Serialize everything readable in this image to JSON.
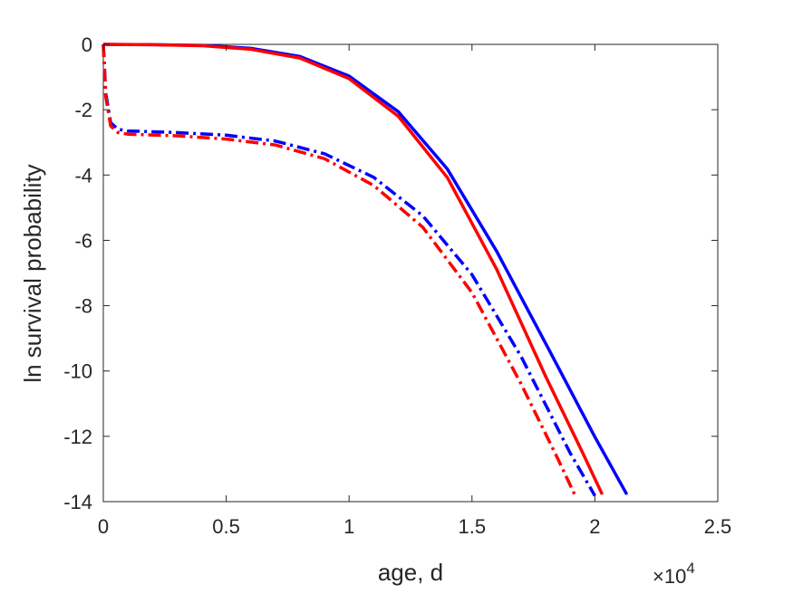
{
  "chart_data": {
    "type": "line",
    "xlabel": "age, d",
    "ylabel": "ln survival probability",
    "x_multiplier_base": "×10",
    "x_multiplier_exp": "4",
    "xlim": [
      0,
      25000
    ],
    "ylim": [
      -14,
      0
    ],
    "x_ticks": [
      0,
      5000,
      10000,
      15000,
      20000,
      25000
    ],
    "x_tick_labels": [
      "0",
      "0.5",
      "1",
      "1.5",
      "2",
      "2.5"
    ],
    "y_ticks": [
      0,
      -2,
      -4,
      -6,
      -8,
      -10,
      -12,
      -14
    ],
    "y_tick_labels": [
      "0",
      "-2",
      "-4",
      "-6",
      "-8",
      "-10",
      "-12",
      "-14"
    ],
    "grid": false,
    "series": [
      {
        "color": "#0000ff",
        "style": "solid",
        "x": [
          0,
          2000,
          4000,
          6000,
          8000,
          10000,
          12000,
          14000,
          16000,
          18000,
          20000,
          21300
        ],
        "y": [
          0,
          -0.01,
          -0.03,
          -0.12,
          -0.37,
          -0.97,
          -2.06,
          -3.82,
          -6.33,
          -9.16,
          -12.02,
          -13.78
        ]
      },
      {
        "color": "#ff0000",
        "style": "solid",
        "x": [
          0,
          2000,
          4000,
          6000,
          8000,
          10000,
          12000,
          14000,
          16000,
          18000,
          19500,
          20300
        ],
        "y": [
          0,
          -0.01,
          -0.04,
          -0.15,
          -0.42,
          -1.05,
          -2.2,
          -4.08,
          -6.88,
          -10.17,
          -12.5,
          -13.78
        ]
      },
      {
        "color": "#0000ff",
        "style": "dashdot",
        "x": [
          0,
          100,
          300,
          600,
          1000,
          3000,
          5000,
          7000,
          9000,
          11000,
          13000,
          15000,
          17000,
          19000,
          20000
        ],
        "y": [
          0,
          -1.5,
          -2.4,
          -2.6,
          -2.65,
          -2.7,
          -2.78,
          -2.96,
          -3.35,
          -4.07,
          -5.25,
          -7.05,
          -9.56,
          -12.52,
          -13.82
        ]
      },
      {
        "color": "#ff0000",
        "style": "dashdot",
        "x": [
          0,
          100,
          300,
          600,
          1000,
          3000,
          5000,
          7000,
          9000,
          11000,
          13000,
          15000,
          17000,
          18500,
          19200
        ],
        "y": [
          0,
          -1.6,
          -2.5,
          -2.7,
          -2.75,
          -2.8,
          -2.9,
          -3.08,
          -3.5,
          -4.32,
          -5.6,
          -7.6,
          -10.4,
          -12.7,
          -13.82
        ]
      }
    ]
  }
}
